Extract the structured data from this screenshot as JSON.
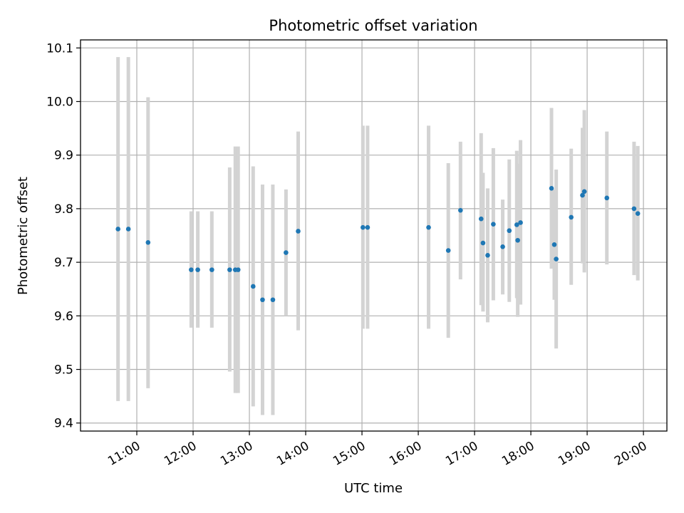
{
  "chart_data": {
    "type": "scatter",
    "title": "Photometric offset variation",
    "xlabel": "UTC time",
    "ylabel": "Photometric offset",
    "xlim": [
      "10:00",
      "20:25"
    ],
    "ylim": [
      9.385,
      10.115
    ],
    "grid": true,
    "x_ticks": [
      "11:00",
      "12:00",
      "13:00",
      "14:00",
      "15:00",
      "16:00",
      "17:00",
      "18:00",
      "19:00",
      "20:00"
    ],
    "y_ticks": [
      "9.4",
      "9.5",
      "9.6",
      "9.7",
      "9.8",
      "9.9",
      "10.0",
      "10.1"
    ],
    "colors": {
      "point": "#1f77b4",
      "errorbar": "#d3d3d3",
      "grid": "#b0b0b0"
    },
    "points": [
      {
        "x": "10:40",
        "y": 9.762,
        "lo": 9.441,
        "hi": 10.083
      },
      {
        "x": "10:51",
        "y": 9.762,
        "lo": 9.441,
        "hi": 10.083
      },
      {
        "x": "11:12",
        "y": 9.737,
        "lo": 9.465,
        "hi": 10.008
      },
      {
        "x": "11:58",
        "y": 9.686,
        "lo": 9.578,
        "hi": 9.795
      },
      {
        "x": "12:05",
        "y": 9.686,
        "lo": 9.578,
        "hi": 9.795
      },
      {
        "x": "12:20",
        "y": 9.686,
        "lo": 9.578,
        "hi": 9.795
      },
      {
        "x": "12:39",
        "y": 9.686,
        "lo": 9.496,
        "hi": 9.877
      },
      {
        "x": "12:45",
        "y": 9.686,
        "lo": 9.456,
        "hi": 9.916
      },
      {
        "x": "12:48",
        "y": 9.686,
        "lo": 9.456,
        "hi": 9.916
      },
      {
        "x": "13:04",
        "y": 9.655,
        "lo": 9.431,
        "hi": 9.879
      },
      {
        "x": "13:14",
        "y": 9.63,
        "lo": 9.415,
        "hi": 9.845
      },
      {
        "x": "13:25",
        "y": 9.63,
        "lo": 9.415,
        "hi": 9.845
      },
      {
        "x": "13:39",
        "y": 9.718,
        "lo": 9.6,
        "hi": 9.836
      },
      {
        "x": "13:52",
        "y": 9.758,
        "lo": 9.573,
        "hi": 9.944
      },
      {
        "x": "15:01",
        "y": 9.765,
        "lo": 9.576,
        "hi": 9.955
      },
      {
        "x": "15:06",
        "y": 9.765,
        "lo": 9.576,
        "hi": 9.955
      },
      {
        "x": "16:11",
        "y": 9.765,
        "lo": 9.576,
        "hi": 9.955
      },
      {
        "x": "16:32",
        "y": 9.722,
        "lo": 9.559,
        "hi": 9.885
      },
      {
        "x": "16:45",
        "y": 9.797,
        "lo": 9.668,
        "hi": 9.925
      },
      {
        "x": "17:07",
        "y": 9.781,
        "lo": 9.62,
        "hi": 9.941
      },
      {
        "x": "17:09",
        "y": 9.736,
        "lo": 9.608,
        "hi": 9.867
      },
      {
        "x": "17:14",
        "y": 9.713,
        "lo": 9.588,
        "hi": 9.838
      },
      {
        "x": "17:20",
        "y": 9.771,
        "lo": 9.629,
        "hi": 9.913
      },
      {
        "x": "17:30",
        "y": 9.729,
        "lo": 9.64,
        "hi": 9.817
      },
      {
        "x": "17:37",
        "y": 9.759,
        "lo": 9.626,
        "hi": 9.892
      },
      {
        "x": "17:45",
        "y": 9.77,
        "lo": 9.633,
        "hi": 9.908
      },
      {
        "x": "17:46",
        "y": 9.741,
        "lo": 9.598,
        "hi": 9.884
      },
      {
        "x": "17:49",
        "y": 9.774,
        "lo": 9.621,
        "hi": 9.928
      },
      {
        "x": "18:22",
        "y": 9.838,
        "lo": 9.688,
        "hi": 9.988
      },
      {
        "x": "18:25",
        "y": 9.733,
        "lo": 9.63,
        "hi": 9.836
      },
      {
        "x": "18:27",
        "y": 9.706,
        "lo": 9.539,
        "hi": 9.873
      },
      {
        "x": "18:43",
        "y": 9.784,
        "lo": 9.658,
        "hi": 9.912
      },
      {
        "x": "18:55",
        "y": 9.825,
        "lo": 9.698,
        "hi": 9.951
      },
      {
        "x": "18:57",
        "y": 9.832,
        "lo": 9.681,
        "hi": 9.984
      },
      {
        "x": "19:21",
        "y": 9.82,
        "lo": 9.696,
        "hi": 9.944
      },
      {
        "x": "19:50",
        "y": 9.8,
        "lo": 9.676,
        "hi": 9.925
      },
      {
        "x": "19:54",
        "y": 9.791,
        "lo": 9.666,
        "hi": 9.917
      }
    ]
  }
}
